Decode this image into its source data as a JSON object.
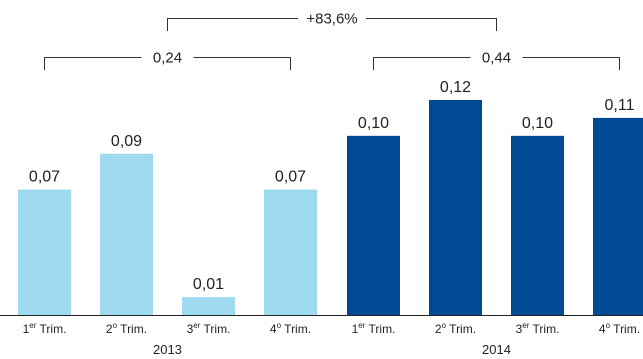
{
  "chart_data": {
    "type": "bar",
    "groups": [
      {
        "year": "2013",
        "color": "#9fdaf0",
        "categories": [
          {
            "main": "1",
            "sup": "er",
            "rest": " Trim."
          },
          {
            "main": "2",
            "sup": "o",
            "rest": " Trim."
          },
          {
            "main": "3",
            "sup": "er",
            "rest": " Trim."
          },
          {
            "main": "4",
            "sup": "o",
            "rest": " Trim."
          }
        ],
        "values": [
          0.07,
          0.09,
          0.01,
          0.07
        ],
        "labels": [
          "0,07",
          "0,09",
          "0,01",
          "0,07"
        ],
        "total_label": "0,24"
      },
      {
        "year": "2014",
        "color": "#004a93",
        "categories": [
          {
            "main": "1",
            "sup": "er",
            "rest": " Trim."
          },
          {
            "main": "2",
            "sup": "o",
            "rest": " Trim."
          },
          {
            "main": "3",
            "sup": "er",
            "rest": " Trim."
          },
          {
            "main": "4",
            "sup": "o",
            "rest": " Trim."
          }
        ],
        "values": [
          0.1,
          0.12,
          0.1,
          0.11
        ],
        "labels": [
          "0,10",
          "0,12",
          "0,10",
          "0,11"
        ],
        "total_label": "0,44"
      }
    ],
    "change_label": "+83,6%",
    "ylim": [
      0,
      0.12
    ],
    "grid": false,
    "legend": "none"
  }
}
